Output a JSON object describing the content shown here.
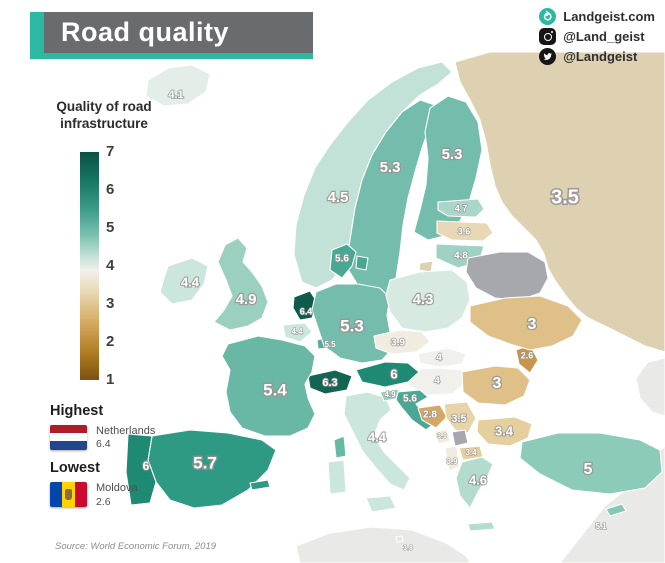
{
  "header": {
    "title": "Road quality"
  },
  "branding": {
    "website": "Landgeist.com",
    "instagram": "@Land_geist",
    "twitter": "@Landgeist"
  },
  "legend": {
    "title_lines": [
      "Quality of road",
      "infrastructure"
    ],
    "ticks": [
      "7",
      "6",
      "5",
      "4",
      "3",
      "2",
      "1"
    ]
  },
  "annotations": {
    "highest_label": "Highest",
    "highest_country": "Netherlands",
    "highest_value": "6.4",
    "lowest_label": "Lowest",
    "lowest_country": "Moldova",
    "lowest_value": "2.6"
  },
  "source": "Source: World Economic Forum, 2019",
  "colors": {
    "accent": "#2cb9a2",
    "banner": "#6a6b6e",
    "no_data": "#a6a8ad",
    "scale_high": "#0a5143",
    "scale_low": "#7c520e",
    "nl_flag": [
      "#AE1C28",
      "#FFFFFF",
      "#21468B"
    ],
    "md_flag": [
      "#0046AE",
      "#FFD200",
      "#CC092F"
    ]
  },
  "map": {
    "type": "choropleth",
    "metric": "Quality of road infrastructure (1-7)",
    "countries": [
      {
        "id": "is",
        "name": "Iceland",
        "value": "4.1",
        "color": "#e3eee8"
      },
      {
        "id": "no",
        "name": "Norway",
        "value": "4.5",
        "color": "#c2e1d7"
      },
      {
        "id": "se",
        "name": "Sweden",
        "value": "5.3",
        "color": "#74bdac"
      },
      {
        "id": "fi",
        "name": "Finland",
        "value": "5.3",
        "color": "#74bdac"
      },
      {
        "id": "ee",
        "name": "Estonia",
        "value": "4.7",
        "color": "#a9d6c9"
      },
      {
        "id": "lv",
        "name": "Latvia",
        "value": "3.6",
        "color": "#e9d8b5"
      },
      {
        "id": "lt",
        "name": "Lithuania",
        "value": "4.8",
        "color": "#9fd2c4"
      },
      {
        "id": "ru",
        "name": "Russia",
        "value": "3.5",
        "color": "#ddd1b2"
      },
      {
        "id": "by",
        "name": "Belarus",
        "value": null,
        "color": "#a6a8ad"
      },
      {
        "id": "dk",
        "name": "Denmark",
        "value": "5.6",
        "color": "#49a893"
      },
      {
        "id": "gb",
        "name": "United Kingdom",
        "value": "4.9",
        "color": "#9bd0c1"
      },
      {
        "id": "ie",
        "name": "Ireland",
        "value": "4.4",
        "color": "#cbe6dc"
      },
      {
        "id": "nl",
        "name": "Netherlands",
        "value": "6.4",
        "color": "#0e5b4c"
      },
      {
        "id": "be",
        "name": "Belgium",
        "value": "4.4",
        "color": "#cbe6dc"
      },
      {
        "id": "lu",
        "name": "Luxembourg",
        "value": "5.5",
        "color": "#55ad98"
      },
      {
        "id": "de",
        "name": "Germany",
        "value": "5.3",
        "color": "#74bdac"
      },
      {
        "id": "pl",
        "name": "Poland",
        "value": "4.3",
        "color": "#d6eae1"
      },
      {
        "id": "cz",
        "name": "Czechia",
        "value": "3.9",
        "color": "#f1ece0"
      },
      {
        "id": "sk",
        "name": "Slovakia",
        "value": "4",
        "color": "#f0f1ec"
      },
      {
        "id": "hu",
        "name": "Hungary",
        "value": "4",
        "color": "#f0f1ec"
      },
      {
        "id": "at",
        "name": "Austria",
        "value": "6",
        "color": "#1e8a74"
      },
      {
        "id": "ch",
        "name": "Switzerland",
        "value": "6.3",
        "color": "#136452"
      },
      {
        "id": "fr",
        "name": "France",
        "value": "5.4",
        "color": "#69b8a6"
      },
      {
        "id": "es",
        "name": "Spain",
        "value": "5.7",
        "color": "#2f9a84"
      },
      {
        "id": "pt",
        "name": "Portugal",
        "value": "6",
        "color": "#1e8a74"
      },
      {
        "id": "it",
        "name": "Italy",
        "value": "4.4",
        "color": "#cbe6dc"
      },
      {
        "id": "si",
        "name": "Slovenia",
        "value": "4.9",
        "color": "#9bd0c1"
      },
      {
        "id": "hr",
        "name": "Croatia",
        "value": "5.6",
        "color": "#49a893"
      },
      {
        "id": "ba",
        "name": "Bosnia and Herzegovina",
        "value": "2.8",
        "color": "#d6a862"
      },
      {
        "id": "rs",
        "name": "Serbia",
        "value": "3.5",
        "color": "#e8d4a9"
      },
      {
        "id": "me",
        "name": "Montenegro",
        "value": "3.9",
        "color": "#f1ece0"
      },
      {
        "id": "xk",
        "name": "Kosovo",
        "value": null,
        "color": "#a6a8ad"
      },
      {
        "id": "mk",
        "name": "North Macedonia",
        "value": "3.4",
        "color": "#e5cf9f"
      },
      {
        "id": "al",
        "name": "Albania",
        "value": "3.9",
        "color": "#f1ece0"
      },
      {
        "id": "bg",
        "name": "Bulgaria",
        "value": "3.4",
        "color": "#e5cf9f"
      },
      {
        "id": "ro",
        "name": "Romania",
        "value": "3",
        "color": "#dfc088"
      },
      {
        "id": "md",
        "name": "Moldova",
        "value": "2.6",
        "color": "#c9944c"
      },
      {
        "id": "ua",
        "name": "Ukraine",
        "value": "3",
        "color": "#dfc088"
      },
      {
        "id": "gr",
        "name": "Greece",
        "value": "4.6",
        "color": "#b3dbce"
      },
      {
        "id": "tr",
        "name": "Turkey",
        "value": "5",
        "color": "#8ccbba"
      },
      {
        "id": "cy",
        "name": "Cyprus",
        "value": "5.1",
        "color": "#86c8b7"
      },
      {
        "id": "mt",
        "name": "Malta",
        "value": "3.8",
        "color": "#efe6d4"
      }
    ]
  }
}
